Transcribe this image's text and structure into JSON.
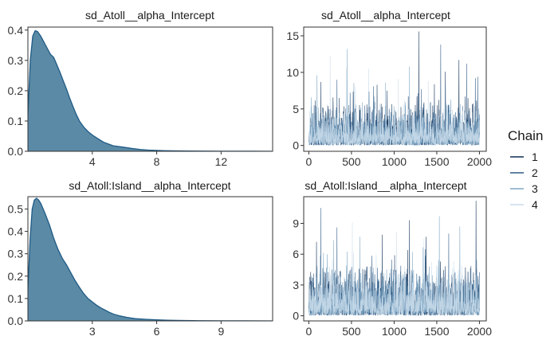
{
  "chart_data": [
    {
      "type": "area",
      "title": "sd_Atoll__alpha_Intercept",
      "xlim": [
        0,
        15.2
      ],
      "ylim": [
        0,
        0.41
      ],
      "xticks": [
        4,
        8,
        12
      ],
      "yticks": [
        0.0,
        0.1,
        0.2,
        0.3,
        0.4
      ],
      "tick_decimals": 1,
      "x": [
        0,
        0.15,
        0.3,
        0.45,
        0.6,
        0.8,
        1.0,
        1.2,
        1.4,
        1.6,
        1.8,
        2.0,
        2.2,
        2.4,
        2.6,
        2.8,
        3.0,
        3.2,
        3.5,
        3.8,
        4.1,
        4.4,
        4.7,
        5.0,
        5.3,
        5.6,
        6.0,
        6.5,
        7.0,
        7.5,
        8.0,
        8.5,
        9.0,
        10.0,
        11.0,
        12.0,
        13.0,
        14.0,
        15.2
      ],
      "y": [
        0.12,
        0.3,
        0.38,
        0.398,
        0.395,
        0.38,
        0.36,
        0.34,
        0.32,
        0.31,
        0.285,
        0.26,
        0.232,
        0.205,
        0.175,
        0.148,
        0.122,
        0.1,
        0.078,
        0.062,
        0.05,
        0.04,
        0.03,
        0.024,
        0.018,
        0.016,
        0.013,
        0.009,
        0.006,
        0.004,
        0.003,
        0.002,
        0.0015,
        0.001,
        0.0007,
        0.0004,
        0.0002,
        0.0001,
        0.0
      ],
      "fill": "#5b8aa6",
      "line": "#1f5a85"
    },
    {
      "type": "line",
      "title": "sd_Atoll__alpha_Intercept",
      "xlim": [
        -60,
        2080
      ],
      "ylim": [
        -0.8,
        16.2
      ],
      "xticks": [
        0,
        500,
        1000,
        1500,
        2000
      ],
      "yticks": [
        0,
        5,
        10,
        15
      ],
      "tick_decimals": 0,
      "n_iterations": 2000,
      "peaks": [
        [
          1290,
          15.6
        ],
        [
          1545,
          13.8
        ],
        [
          450,
          13.2
        ],
        [
          250,
          12.3
        ],
        [
          1760,
          11.7
        ],
        [
          1850,
          11.2
        ],
        [
          1180,
          10.8
        ],
        [
          700,
          10.5
        ],
        [
          1600,
          10.1
        ],
        [
          1980,
          9.4
        ],
        [
          95,
          9.6
        ],
        [
          1050,
          9.1
        ],
        [
          140,
          8.7
        ],
        [
          330,
          9.0
        ],
        [
          900,
          8.6
        ],
        [
          1400,
          8.8
        ],
        [
          800,
          8.3
        ]
      ],
      "series": [
        {
          "name": "1",
          "color": "#0e2f57",
          "seed": 11
        },
        {
          "name": "2",
          "color": "#2e5a85",
          "seed": 23
        },
        {
          "name": "3",
          "color": "#7ea7c4",
          "seed": 37
        },
        {
          "name": "4",
          "color": "#c9dcea",
          "seed": 53
        }
      ]
    },
    {
      "type": "area",
      "title": "sd_Atoll:Island__alpha_Intercept",
      "xlim": [
        0,
        11.4
      ],
      "ylim": [
        0,
        0.555
      ],
      "xticks": [
        3,
        6,
        9
      ],
      "yticks": [
        0.0,
        0.1,
        0.2,
        0.3,
        0.4,
        0.5
      ],
      "tick_decimals": 1,
      "x": [
        0,
        0.1,
        0.2,
        0.3,
        0.4,
        0.5,
        0.6,
        0.8,
        1.0,
        1.2,
        1.4,
        1.6,
        1.8,
        2.0,
        2.2,
        2.4,
        2.6,
        2.8,
        3.0,
        3.2,
        3.4,
        3.6,
        3.8,
        4.0,
        4.3,
        4.6,
        5.0,
        5.5,
        6.0,
        6.5,
        7.0,
        8.0,
        9.0,
        10.0,
        11.4
      ],
      "y": [
        0.14,
        0.36,
        0.5,
        0.54,
        0.548,
        0.54,
        0.525,
        0.48,
        0.43,
        0.37,
        0.32,
        0.28,
        0.25,
        0.215,
        0.18,
        0.15,
        0.122,
        0.1,
        0.085,
        0.07,
        0.058,
        0.048,
        0.038,
        0.03,
        0.022,
        0.016,
        0.01,
        0.007,
        0.005,
        0.003,
        0.002,
        0.001,
        0.0005,
        0.0002,
        0.0
      ],
      "fill": "#5b8aa6",
      "line": "#1f5a85"
    },
    {
      "type": "line",
      "title": "sd_Atoll:Island__alpha_Intercept",
      "xlim": [
        -60,
        2080
      ],
      "ylim": [
        -0.5,
        11.6
      ],
      "xticks": [
        0,
        500,
        1000,
        1500,
        2000
      ],
      "yticks": [
        0,
        3,
        6,
        9
      ],
      "tick_decimals": 0,
      "n_iterations": 2000,
      "peaks": [
        [
          1960,
          11.2
        ],
        [
          140,
          10.5
        ],
        [
          1530,
          9.7
        ],
        [
          510,
          9.1
        ],
        [
          1180,
          9.3
        ],
        [
          330,
          8.6
        ],
        [
          1770,
          8.7
        ],
        [
          1030,
          8.2
        ],
        [
          860,
          7.9
        ],
        [
          1640,
          8.0
        ],
        [
          600,
          7.7
        ],
        [
          1350,
          7.5
        ],
        [
          90,
          7.2
        ]
      ],
      "series": [
        {
          "name": "1",
          "color": "#0e2f57",
          "seed": 71
        },
        {
          "name": "2",
          "color": "#2e5a85",
          "seed": 83
        },
        {
          "name": "3",
          "color": "#7ea7c4",
          "seed": 97
        },
        {
          "name": "4",
          "color": "#c9dcea",
          "seed": 109
        }
      ]
    }
  ],
  "legend": {
    "title": "Chain",
    "items": [
      {
        "label": "1",
        "color": "#0e2f57"
      },
      {
        "label": "2",
        "color": "#2e5a85"
      },
      {
        "label": "3",
        "color": "#7ea7c4"
      },
      {
        "label": "4",
        "color": "#c9dcea"
      }
    ]
  }
}
